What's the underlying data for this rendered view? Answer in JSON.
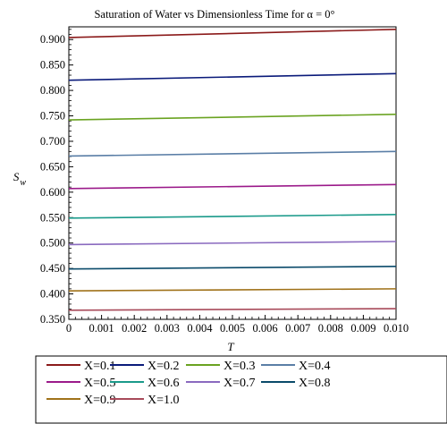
{
  "chart_data": {
    "type": "line",
    "title": "Saturation of Water vs Dimensionless Time for α = 0°",
    "xlabel": "T",
    "ylabel_main": "S",
    "ylabel_sub": "w",
    "xlim": [
      0,
      0.01
    ],
    "ylim": [
      0.35,
      0.925
    ],
    "x_ticks": [
      "0",
      "0.001",
      "0.002",
      "0.003",
      "0.004",
      "0.005",
      "0.006",
      "0.007",
      "0.008",
      "0.009",
      "0.010"
    ],
    "y_ticks": [
      "0.350",
      "0.400",
      "0.450",
      "0.500",
      "0.550",
      "0.600",
      "0.650",
      "0.700",
      "0.750",
      "0.800",
      "0.850",
      "0.900"
    ],
    "grid": false,
    "legend_position": "bottom",
    "series": [
      {
        "name": "X=0.1",
        "color": "#8b1a1a",
        "x": [
          0,
          0.01
        ],
        "values": [
          0.904,
          0.92
        ]
      },
      {
        "name": "X=0.2",
        "color": "#0a1a7a",
        "x": [
          0,
          0.01
        ],
        "values": [
          0.82,
          0.833
        ]
      },
      {
        "name": "X=0.3",
        "color": "#6aa321",
        "x": [
          0,
          0.01
        ],
        "values": [
          0.742,
          0.753
        ]
      },
      {
        "name": "X=0.4",
        "color": "#5a7ea6",
        "x": [
          0,
          0.01
        ],
        "values": [
          0.671,
          0.68
        ]
      },
      {
        "name": "X=0.5",
        "color": "#9b1a8a",
        "x": [
          0,
          0.01
        ],
        "values": [
          0.607,
          0.615
        ]
      },
      {
        "name": "X=0.6",
        "color": "#1a9a8a",
        "x": [
          0,
          0.01
        ],
        "values": [
          0.549,
          0.556
        ]
      },
      {
        "name": "X=0.7",
        "color": "#8a6abf",
        "x": [
          0,
          0.01
        ],
        "values": [
          0.497,
          0.503
        ]
      },
      {
        "name": "X=0.8",
        "color": "#0a4a6a",
        "x": [
          0,
          0.01
        ],
        "values": [
          0.449,
          0.454
        ]
      },
      {
        "name": "X=0.9",
        "color": "#a0721a",
        "x": [
          0,
          0.01
        ],
        "values": [
          0.406,
          0.41
        ]
      },
      {
        "name": "X=1.0",
        "color": "#a84a5a",
        "x": [
          0,
          0.01
        ],
        "values": [
          0.368,
          0.371
        ]
      }
    ]
  }
}
